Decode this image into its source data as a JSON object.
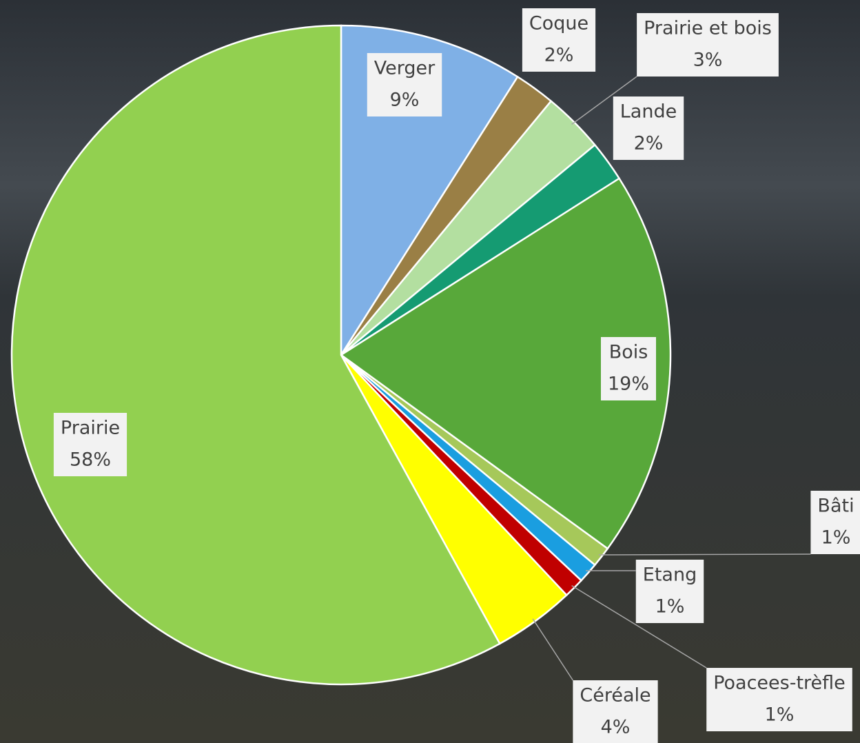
{
  "chart_data": {
    "type": "pie",
    "categories": [
      "Verger",
      "Coque",
      "Prairie et bois",
      "Lande",
      "Bois",
      "Bâti",
      "Etang",
      "Poacees-trèfle",
      "Céréale",
      "Prairie"
    ],
    "values": [
      9,
      2,
      3,
      2,
      19,
      1,
      1,
      1,
      4,
      58
    ],
    "value_labels": [
      "9%",
      "2%",
      "3%",
      "2%",
      "19%",
      "1%",
      "1%",
      "1%",
      "4%",
      "58%"
    ],
    "colors": [
      "#7fb0e6",
      "#9a7f45",
      "#b3dfa0",
      "#159b72",
      "#58a83a",
      "#a6c85a",
      "#1a9ee0",
      "#c00000",
      "#ffff00",
      "#92d050"
    ]
  }
}
